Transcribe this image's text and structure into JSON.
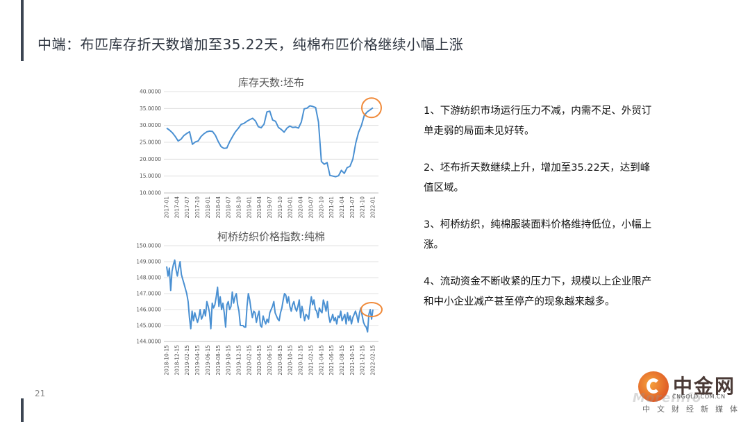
{
  "slide": {
    "title": "中端：布匹库存折天数增加至35.22天，纯棉布匹价格继续小幅上涨",
    "page_number": "21"
  },
  "colors": {
    "line": "#4a90d2",
    "grid": "#d9d9d9",
    "highlight_circle": "#f08a3a",
    "axis_text": "#555555",
    "accent_bar": "#3c4552"
  },
  "notes": [
    "1、下游纺织市场运行压力不减，内需不足、外贸订单走弱的局面未见好转。",
    "2、坯布折天数继续上升，增加至35.22天，达到峰值区域。",
    "3、柯桥纺织，纯棉服装面料价格维持低位，小幅上涨。",
    "4、流动资金不断收紧的压力下，规模以上企业限产和中小企业减产甚至停产的现象越来越多。"
  ],
  "logo": {
    "name": "中金网",
    "domain": "CNGOLD.COM.CN",
    "tagline": "中文财经新媒体",
    "watermark": "MoreInfo"
  },
  "chart_data": [
    {
      "type": "line",
      "title": "库存天数:坯布",
      "xlabel": "",
      "ylabel": "",
      "ylim": [
        10,
        40
      ],
      "yticks": [
        "10.0000",
        "15.0000",
        "20.0000",
        "25.0000",
        "30.0000",
        "35.0000",
        "40.0000"
      ],
      "xticks": [
        "2017-01",
        "2017-04",
        "2017-07",
        "2017-10",
        "2018-01",
        "2018-04",
        "2018-07",
        "2018-10",
        "2019-01",
        "2019-04",
        "2019-07",
        "2019-10",
        "2020-01",
        "2020-04",
        "2020-07",
        "2020-10",
        "2021-01",
        "2021-04",
        "2021-07",
        "2021-10",
        "2022-01"
      ],
      "grid": true,
      "x_start": "2017-01",
      "x_step": "month",
      "highlight_last": true,
      "series": [
        {
          "values": [
            29.2,
            28.6,
            27.8,
            26.7,
            25.4,
            25.9,
            27.0,
            27.6,
            28.1,
            24.4,
            25.1,
            25.4,
            26.7,
            27.5,
            28.1,
            28.3,
            28.2,
            27.1,
            25.2,
            23.7,
            23.2,
            23.3,
            25.2,
            26.7,
            28.1,
            29.1,
            30.3,
            30.6,
            31.2,
            31.7,
            32.1,
            31.3,
            29.6,
            29.3,
            30.4,
            34.0,
            34.2,
            31.6,
            31.2,
            29.4,
            28.8,
            28.0,
            29.2,
            29.8,
            29.4,
            29.5,
            29.2,
            31.0,
            34.9,
            35.1,
            35.8,
            35.6,
            35.3,
            31.0,
            19.3,
            18.5,
            19.0,
            15.2,
            15.0,
            14.8,
            15.1,
            16.7,
            15.8,
            17.5,
            17.9,
            20.0,
            24.8,
            28.0,
            30.0,
            33.0,
            34.0,
            34.6,
            35.22
          ]
        }
      ]
    },
    {
      "type": "line",
      "title": "柯桥纺织价格指数:纯棉",
      "xlabel": "",
      "ylabel": "",
      "ylim": [
        144,
        150
      ],
      "yticks": [
        "144.0000",
        "145.0000",
        "146.0000",
        "147.0000",
        "148.0000",
        "149.0000",
        "150.0000"
      ],
      "xticks": [
        "2018-10-15",
        "2018-12-15",
        "2019-02-15",
        "2019-04-15",
        "2019-06-15",
        "2019-08-15",
        "2019-10-15",
        "2019-12-15",
        "2020-02-15",
        "2020-04-15",
        "2020-06-15",
        "2020-08-15",
        "2020-10-15",
        "2020-12-15",
        "2021-02-15",
        "2021-04-15",
        "2021-06-15",
        "2021-08-15",
        "2021-10-15",
        "2021-12-15",
        "2022-02-15"
      ],
      "grid": true,
      "highlight_last": true,
      "series": [
        {
          "values": [
            148.7,
            148.1,
            148.6,
            147.2,
            148.4,
            148.8,
            149.1,
            148.5,
            148.1,
            148.6,
            149.0,
            148.2,
            147.9,
            147.6,
            147.3,
            147.0,
            146.5,
            145.5,
            144.8,
            145.9,
            145.3,
            145.8,
            145.5,
            145.2,
            145.5,
            146.0,
            145.4,
            145.6,
            146.0,
            145.6,
            146.5,
            146.2,
            145.8,
            144.8,
            146.4,
            146.1,
            146.3,
            146.8,
            147.4,
            146.2,
            146.8,
            146.0,
            146.4,
            145.8,
            144.9,
            146.3,
            146.5,
            146.0,
            146.2,
            147.1,
            146.4,
            146.8,
            147.0,
            146.3,
            145.9,
            145.0,
            145.0,
            145.0,
            144.9,
            144.9,
            146.2,
            147.0,
            146.6,
            146.0,
            145.5,
            145.9,
            145.8,
            145.2,
            145.6,
            145.9,
            145.0,
            144.9,
            145.6,
            145.3,
            145.1,
            145.4,
            145.2,
            145.8,
            146.0,
            146.2,
            146.5,
            145.8,
            145.6,
            145.4,
            145.3,
            145.8,
            146.1,
            146.6,
            147.0,
            146.9,
            146.4,
            146.8,
            146.2,
            145.9,
            146.3,
            146.5,
            146.1,
            145.9,
            146.2,
            146.6,
            145.5,
            146.2,
            145.8,
            145.3,
            145.7,
            145.6,
            145.4,
            146.2,
            146.8,
            146.3,
            146.6,
            146.0,
            145.9,
            145.5,
            146.1,
            145.9,
            145.8,
            146.6,
            146.3,
            145.9,
            146.5,
            145.6,
            145.2,
            145.4,
            145.7,
            145.3,
            145.5,
            145.1,
            145.6,
            145.5,
            145.9,
            145.3,
            145.5,
            145.7,
            145.1,
            145.8,
            145.3,
            145.6,
            145.1,
            145.5,
            145.7,
            145.9,
            145.6,
            145.2,
            145.8,
            146.1,
            145.6,
            145.2,
            145.0,
            144.9,
            144.6,
            145.7,
            146.0,
            145.4,
            146.0
          ]
        }
      ]
    }
  ]
}
